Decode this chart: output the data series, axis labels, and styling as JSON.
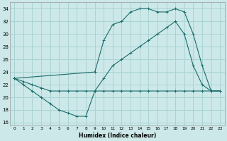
{
  "xlabel": "Humidex (Indice chaleur)",
  "xlim": [
    -0.5,
    23.5
  ],
  "ylim": [
    15.5,
    35
  ],
  "xticks": [
    0,
    1,
    2,
    3,
    4,
    5,
    6,
    7,
    8,
    9,
    10,
    11,
    12,
    13,
    14,
    15,
    16,
    17,
    18,
    19,
    20,
    21,
    22,
    23
  ],
  "yticks": [
    16,
    18,
    20,
    22,
    24,
    26,
    28,
    30,
    32,
    34
  ],
  "bg_color": "#cce8e8",
  "grid_color": "#aad4d4",
  "line_color": "#1a6b6b",
  "series1_x": [
    0,
    1,
    2,
    3,
    4,
    5,
    6,
    7,
    8,
    9,
    10,
    11,
    12,
    13,
    14,
    15,
    16,
    17,
    18,
    19,
    20,
    21,
    22,
    23
  ],
  "series1_y": [
    23,
    22,
    21,
    20,
    19,
    18,
    17.5,
    17,
    17,
    21,
    21,
    21,
    21,
    21,
    21,
    21,
    21,
    21,
    21,
    21,
    21,
    21,
    21,
    21
  ],
  "series2_x": [
    0,
    1,
    2,
    3,
    4,
    5,
    6,
    7,
    8,
    9,
    10,
    11,
    12,
    13,
    14,
    15,
    16,
    17,
    18,
    19,
    20,
    21,
    22,
    23
  ],
  "series2_y": [
    23,
    22.5,
    22,
    21.5,
    21,
    21,
    21,
    21,
    21,
    21,
    23,
    25,
    26,
    27,
    28,
    29,
    30,
    31,
    32,
    30,
    25,
    22,
    21,
    21
  ],
  "series3_x": [
    0,
    9,
    10,
    11,
    12,
    13,
    14,
    15,
    16,
    17,
    18,
    19,
    20,
    21,
    22,
    23
  ],
  "series3_y": [
    23,
    24,
    29,
    31.5,
    32,
    33.5,
    34,
    34,
    33.5,
    33.5,
    34,
    33.5,
    30,
    25,
    21,
    21
  ]
}
